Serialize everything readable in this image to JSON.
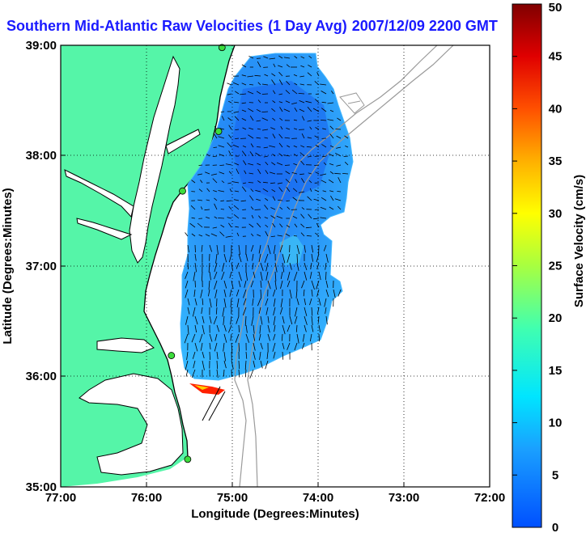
{
  "title": {
    "region": "Southern Mid-Atlantic Raw Velocities",
    "average": "(1 Day Avg)",
    "timestamp": "2007/12/09 2200 GMT"
  },
  "map": {
    "x_axis_label": "Longitude (Degrees:Minutes)",
    "y_axis_label": "Latitude (Degrees:Minutes)",
    "x_ticks": [
      "77:00",
      "76:00",
      "75:00",
      "74:00",
      "73:00",
      "72:00"
    ],
    "y_ticks": [
      "39:00",
      "38:00",
      "37:00",
      "36:00",
      "35:00"
    ],
    "lon_range": [
      -77,
      -72
    ],
    "lat_range": [
      35,
      39
    ],
    "grid": "dotted",
    "land_color": "#55f5a8",
    "coast_color": "#000000",
    "bathymetry_color": "#9a9a9a",
    "stations": [
      {
        "lon": -75.12,
        "lat": 38.98
      },
      {
        "lon": -75.16,
        "lat": 38.22
      },
      {
        "lon": -75.58,
        "lat": 37.68
      },
      {
        "lon": -75.71,
        "lat": 36.19
      },
      {
        "lon": -75.52,
        "lat": 35.25
      }
    ]
  },
  "colorbar": {
    "label": "Surface Velocity (cm/s)",
    "ticks": [
      "50",
      "45",
      "40",
      "35",
      "30",
      "25",
      "20",
      "15",
      "10",
      "5",
      "0"
    ],
    "min": 0,
    "max": 50,
    "colormap": "jet"
  },
  "accent_colors": {
    "title": "#1a1aff",
    "low_velocity": "#1f7aff",
    "high_velocity": "#8b0000"
  }
}
